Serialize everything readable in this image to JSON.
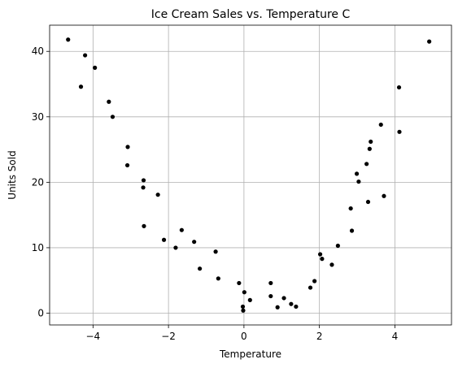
{
  "chart_data": {
    "type": "scatter",
    "title": "Ice Cream Sales vs. Temperature C",
    "xlabel": "Temperature",
    "ylabel": "Units Sold",
    "xlim": [
      -5.15,
      5.5
    ],
    "ylim": [
      -1.8,
      44
    ],
    "xticks": [
      -4,
      -2,
      0,
      2,
      4
    ],
    "yticks": [
      0,
      10,
      20,
      30,
      40
    ],
    "grid": true,
    "marker_color": "#000000",
    "points": [
      {
        "x": -4.66,
        "y": 41.8
      },
      {
        "x": -4.32,
        "y": 34.6
      },
      {
        "x": -4.21,
        "y": 39.4
      },
      {
        "x": -3.95,
        "y": 37.5
      },
      {
        "x": -3.58,
        "y": 32.3
      },
      {
        "x": -3.48,
        "y": 30.0
      },
      {
        "x": -3.08,
        "y": 25.4
      },
      {
        "x": -3.09,
        "y": 22.6
      },
      {
        "x": -2.66,
        "y": 20.3
      },
      {
        "x": -2.67,
        "y": 19.2
      },
      {
        "x": -2.28,
        "y": 18.1
      },
      {
        "x": -2.65,
        "y": 13.3
      },
      {
        "x": -2.12,
        "y": 11.2
      },
      {
        "x": -1.65,
        "y": 12.7
      },
      {
        "x": -1.81,
        "y": 10.0
      },
      {
        "x": -1.32,
        "y": 10.9
      },
      {
        "x": -1.17,
        "y": 6.8
      },
      {
        "x": -0.75,
        "y": 9.4
      },
      {
        "x": -0.68,
        "y": 5.3
      },
      {
        "x": -0.13,
        "y": 4.6
      },
      {
        "x": 0.01,
        "y": 3.2
      },
      {
        "x": -0.03,
        "y": 1.0
      },
      {
        "x": -0.02,
        "y": 0.4
      },
      {
        "x": 0.16,
        "y": 2.0
      },
      {
        "x": 0.71,
        "y": 4.6
      },
      {
        "x": 0.71,
        "y": 2.6
      },
      {
        "x": 0.89,
        "y": 0.9
      },
      {
        "x": 1.06,
        "y": 2.3
      },
      {
        "x": 1.25,
        "y": 1.4
      },
      {
        "x": 1.38,
        "y": 1.0
      },
      {
        "x": 1.76,
        "y": 3.9
      },
      {
        "x": 1.87,
        "y": 4.9
      },
      {
        "x": 2.02,
        "y": 9.0
      },
      {
        "x": 2.07,
        "y": 8.3
      },
      {
        "x": 2.33,
        "y": 7.4
      },
      {
        "x": 2.49,
        "y": 10.3
      },
      {
        "x": 2.83,
        "y": 16.0
      },
      {
        "x": 2.86,
        "y": 12.6
      },
      {
        "x": 2.99,
        "y": 21.3
      },
      {
        "x": 3.04,
        "y": 20.1
      },
      {
        "x": 3.25,
        "y": 22.8
      },
      {
        "x": 3.29,
        "y": 17.0
      },
      {
        "x": 3.33,
        "y": 25.1
      },
      {
        "x": 3.36,
        "y": 26.2
      },
      {
        "x": 3.63,
        "y": 28.8
      },
      {
        "x": 3.71,
        "y": 17.9
      },
      {
        "x": 4.11,
        "y": 34.5
      },
      {
        "x": 4.12,
        "y": 27.7
      },
      {
        "x": 4.91,
        "y": 41.5
      }
    ]
  }
}
